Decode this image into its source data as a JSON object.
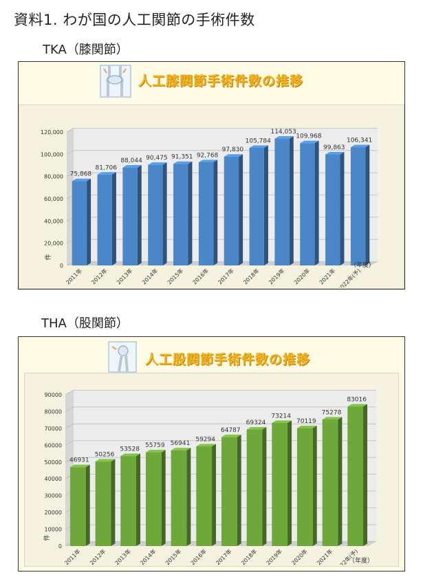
{
  "document": {
    "title": "資料1. わが国の人工関節の手術件数"
  },
  "sections": [
    {
      "heading": "TKA（膝関節）"
    },
    {
      "heading": "THA（股関節）"
    }
  ],
  "chart_data": [
    {
      "type": "bar",
      "title": "人工膝関節手術件数の推移",
      "categories": [
        "2011年",
        "2012年",
        "2013年",
        "2014年",
        "2015年",
        "2016年",
        "2017年",
        "2018年",
        "2019年",
        "2020年",
        "2021年",
        "2022年(予)"
      ],
      "values": [
        75868,
        81706,
        88044,
        90475,
        91351,
        92768,
        97830,
        105784,
        114053,
        109968,
        99863,
        106341
      ],
      "value_labels": [
        "75,868",
        "81,706",
        "88,044",
        "90,475",
        "91,351",
        "92,768",
        "97,830",
        "105,784",
        "114,053",
        "109,968",
        "99,863",
        "106,341"
      ],
      "yticks": [
        "0",
        "20,000",
        "40,000",
        "60,000",
        "80,000",
        "100,000",
        "120,000"
      ],
      "ylim": [
        0,
        120000
      ],
      "ylabel": "件",
      "xlabel": "（年度）",
      "color": "#4a86c8",
      "grid": true
    },
    {
      "type": "bar",
      "title": "人工股関節手術件数の推移",
      "categories": [
        "2011年",
        "2012年",
        "2013年",
        "2014年",
        "2015年",
        "2016年",
        "2017年",
        "2018年",
        "2019年",
        "2020年",
        "2021年",
        "2022年(予)"
      ],
      "values": [
        46931,
        50256,
        53528,
        55759,
        56941,
        59294,
        64787,
        69324,
        73214,
        70119,
        75278,
        83016
      ],
      "value_labels": [
        "46931",
        "50256",
        "53528",
        "55759",
        "56941",
        "59294",
        "64787",
        "69324",
        "73214",
        "70119",
        "75278",
        "83016"
      ],
      "yticks": [
        "0",
        "10000",
        "20000",
        "30000",
        "40000",
        "50000",
        "60000",
        "70000",
        "80000",
        "90000"
      ],
      "ylim": [
        0,
        90000
      ],
      "ylabel": "件",
      "xlabel": "（年度）",
      "color": "#6fa83a",
      "grid": true
    }
  ]
}
